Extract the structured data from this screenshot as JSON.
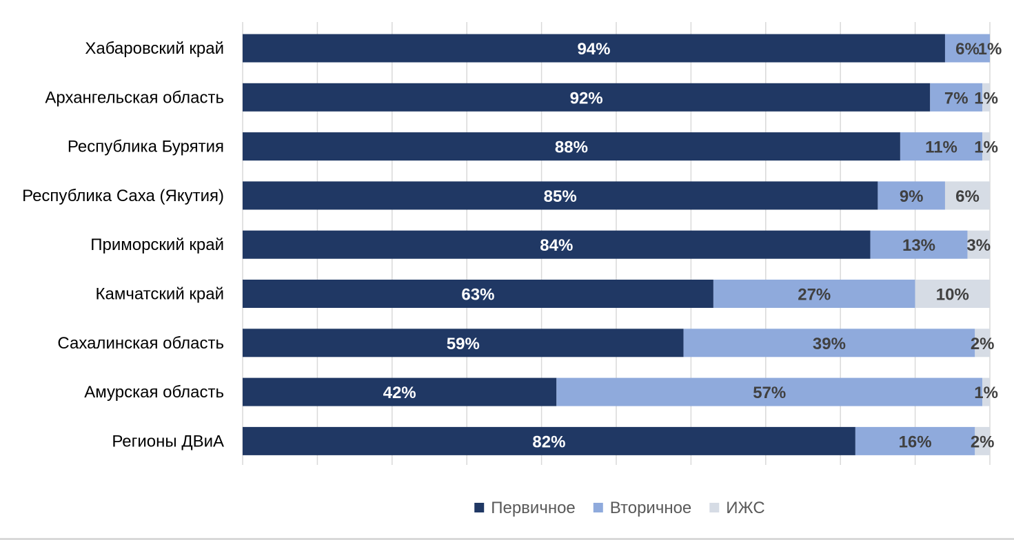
{
  "chart_data": {
    "type": "bar",
    "orientation": "horizontal",
    "stacked": true,
    "categories": [
      "Хабаровский край",
      "Архангельская область",
      "Республика Бурятия",
      "Республика Саха (Якутия)",
      "Приморский край",
      "Камчатский край",
      "Сахалинская область",
      "Амурская область",
      "Регионы ДВиА"
    ],
    "series": [
      {
        "name": "Первичное",
        "color": "#203864",
        "label_color": "#ffffff",
        "values": [
          94,
          92,
          88,
          85,
          84,
          63,
          59,
          42,
          82
        ],
        "labels": [
          "94%",
          "92%",
          "88%",
          "85%",
          "84%",
          "63%",
          "59%",
          "42%",
          "82%"
        ]
      },
      {
        "name": "Вторичное",
        "color": "#8faadc",
        "label_color": "#404040",
        "values": [
          6,
          7,
          11,
          9,
          13,
          27,
          39,
          57,
          16
        ],
        "labels": [
          "6%",
          "7%",
          "11%",
          "9%",
          "13%",
          "27%",
          "39%",
          "57%",
          "16%"
        ]
      },
      {
        "name": "ИЖС",
        "color": "#d6dce5",
        "label_color": "#404040",
        "values": [
          1,
          1,
          1,
          6,
          3,
          10,
          2,
          1,
          2
        ],
        "labels": [
          "1%",
          "1%",
          "1%",
          "6%",
          "3%",
          "10%",
          "2%",
          "1%",
          "2%"
        ]
      }
    ],
    "xlim": [
      0,
      100
    ],
    "grid": true,
    "legend_position": "bottom",
    "grid_color": "#d9d9d9"
  }
}
